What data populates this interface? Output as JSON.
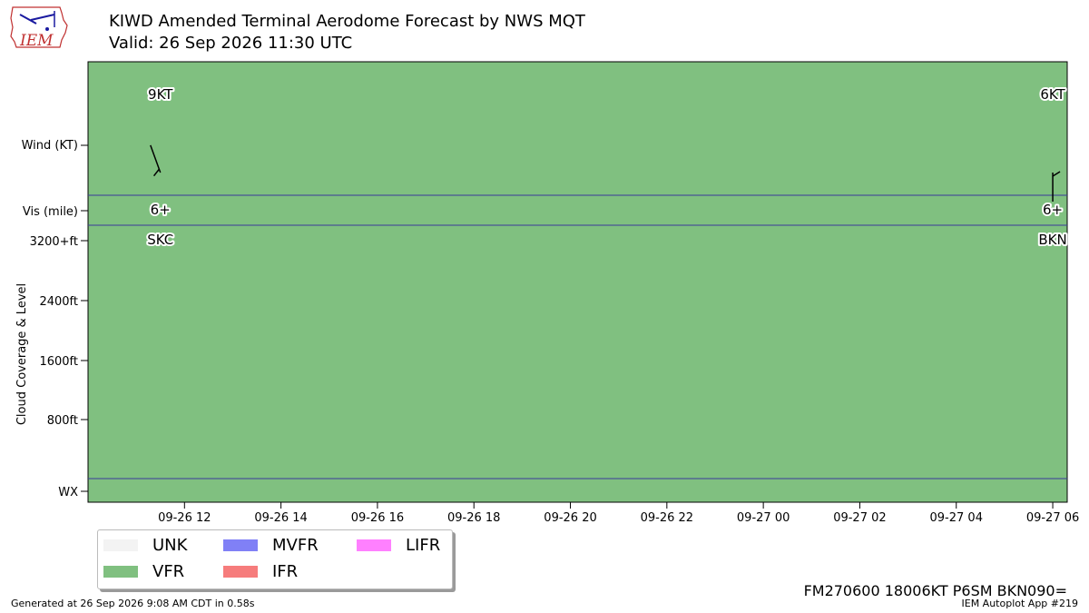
{
  "header": {
    "logo_text": "IEM",
    "title": "KIWD Amended Terminal Aerodome Forecast by NWS MQT",
    "subtitle": "Valid: 26 Sep 2026 11:30 UTC"
  },
  "chart_data": {
    "type": "timeline",
    "background_category": "VFR",
    "row_labels": {
      "wind": "Wind (KT)",
      "vis": "Vis (mile)",
      "cloud_axis_title": "Cloud Coverage & Level",
      "wx": "WX"
    },
    "cloud_ticks": [
      "3200+ft",
      "2400ft",
      "1600ft",
      "800ft"
    ],
    "x_ticks": [
      "09-26 12",
      "09-26 14",
      "09-26 16",
      "09-26 18",
      "09-26 20",
      "09-26 22",
      "09-27 00",
      "09-27 02",
      "09-27 04",
      "09-27 06"
    ],
    "x_range_hours": [
      10.0,
      30.3
    ],
    "forecasts": [
      {
        "hour": 11.5,
        "wind_label": "9KT",
        "wind_dir_deg": 340,
        "wind_speed_kt": 9,
        "vis": "6+",
        "sky": "SKC"
      },
      {
        "hour": 30.0,
        "wind_label": "6KT",
        "wind_dir_deg": 180,
        "wind_speed_kt": 6,
        "vis": "6+",
        "sky": "BKN"
      }
    ],
    "legend": [
      {
        "label": "UNK",
        "color": "#f3f3f3"
      },
      {
        "label": "MVFR",
        "color": "#8080f6"
      },
      {
        "label": "LIFR",
        "color": "#ff80ff"
      },
      {
        "label": "VFR",
        "color": "#80c080"
      },
      {
        "label": "IFR",
        "color": "#f67c7c"
      }
    ]
  },
  "colors": {
    "vfr": "#80c080",
    "separator": "#3a3a9a"
  },
  "raw_taf": "FM270600 18006KT P6SM BKN090=",
  "footer": {
    "generated": "Generated at 26 Sep 2026 9:08 AM CDT in 0.58s",
    "app": "IEM Autoplot App #219"
  }
}
